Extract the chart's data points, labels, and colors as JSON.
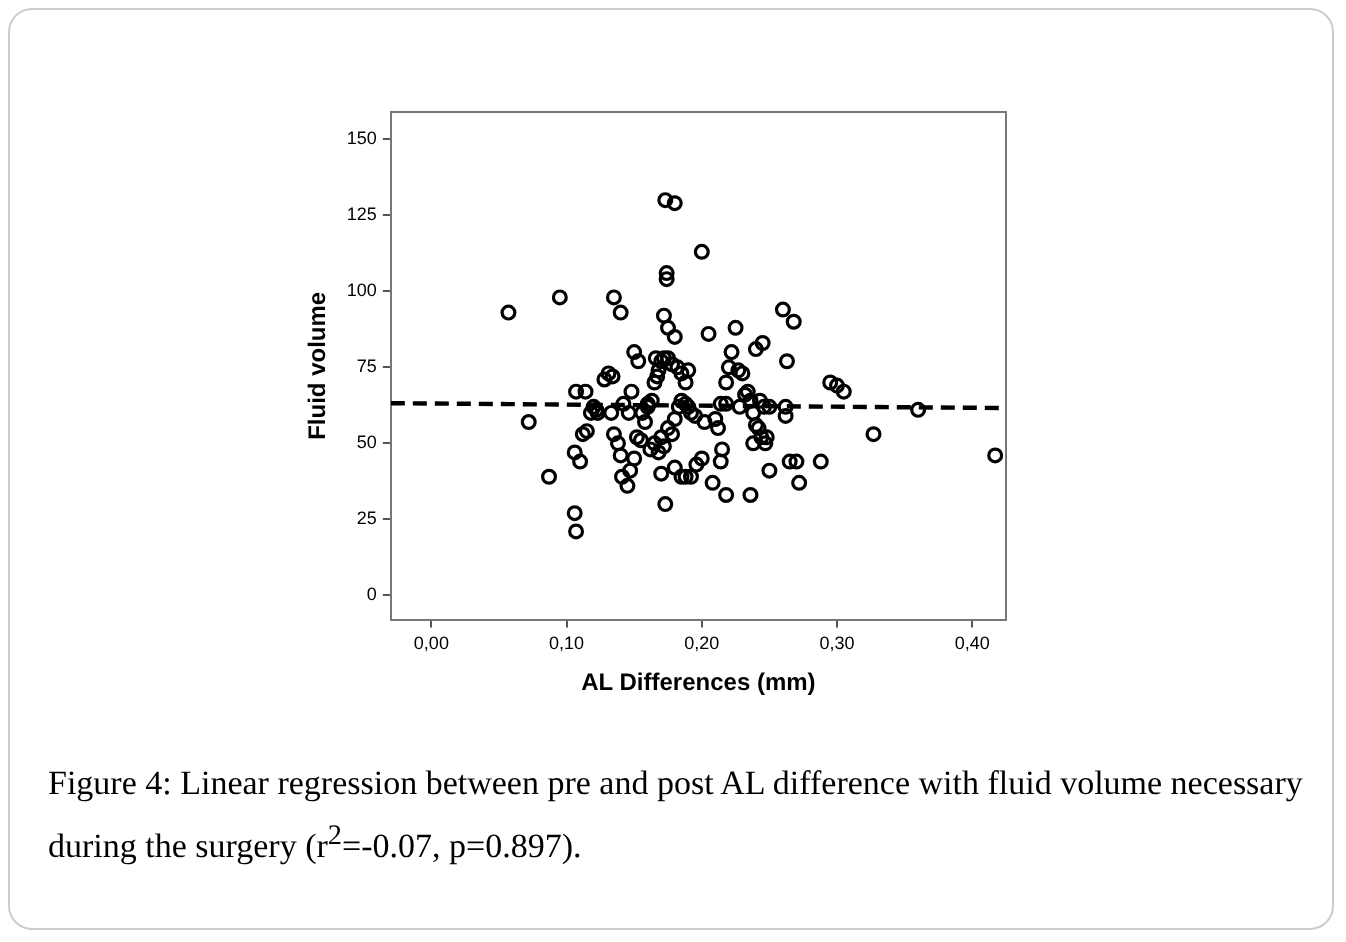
{
  "chart_data": {
    "type": "scatter",
    "xlabel": "AL Differences (mm)",
    "ylabel": "Fluid volume",
    "annotations": [
      "Figure 4: Linear regression between pre and post AL difference with fluid volume necessary during the surgery (r$^{2}$=-0.07, p=0.897)."
    ],
    "xlim": [
      -0.03,
      0.425
    ],
    "ylim": [
      -8,
      159
    ],
    "xticks": [
      {
        "value": 0,
        "label": "0,00"
      },
      {
        "value": 0.1,
        "label": "0,10"
      },
      {
        "value": 0.2,
        "label": "0,20"
      },
      {
        "value": 0.3,
        "label": "0,30"
      },
      {
        "value": 0.4,
        "label": "0,40"
      }
    ],
    "yticks": [
      0,
      25,
      50,
      75,
      100,
      125,
      150
    ],
    "grid": false,
    "legend": false,
    "marker": "circle",
    "series": [
      {
        "color": "#000000",
        "x": [
          0.057,
          0.095,
          0.072,
          0.087,
          0.106,
          0.107,
          0.106,
          0.11,
          0.107,
          0.114,
          0.112,
          0.115,
          0.118,
          0.12,
          0.122,
          0.123,
          0.128,
          0.131,
          0.134,
          0.135,
          0.14,
          0.15,
          0.153,
          0.148,
          0.135,
          0.138,
          0.14,
          0.141,
          0.145,
          0.147,
          0.15,
          0.133,
          0.142,
          0.146,
          0.152,
          0.155,
          0.158,
          0.16,
          0.163,
          0.165,
          0.167,
          0.168,
          0.17,
          0.172,
          0.175,
          0.174,
          0.174,
          0.173,
          0.18,
          0.172,
          0.175,
          0.18,
          0.2,
          0.178,
          0.182,
          0.185,
          0.188,
          0.19,
          0.162,
          0.165,
          0.168,
          0.17,
          0.172,
          0.175,
          0.178,
          0.18,
          0.183,
          0.185,
          0.188,
          0.19,
          0.192,
          0.195,
          0.17,
          0.173,
          0.18,
          0.185,
          0.188,
          0.192,
          0.196,
          0.2,
          0.202,
          0.205,
          0.21,
          0.212,
          0.215,
          0.218,
          0.22,
          0.222,
          0.225,
          0.227,
          0.23,
          0.232,
          0.234,
          0.236,
          0.238,
          0.24,
          0.242,
          0.244,
          0.238,
          0.228,
          0.214,
          0.218,
          0.208,
          0.214,
          0.218,
          0.236,
          0.24,
          0.245,
          0.243,
          0.246,
          0.25,
          0.248,
          0.247,
          0.25,
          0.26,
          0.268,
          0.263,
          0.262,
          0.265,
          0.27,
          0.272,
          0.288,
          0.295,
          0.3,
          0.305,
          0.327,
          0.36,
          0.417,
          0.262,
          0.166,
          0.16,
          0.156
        ],
        "values": [
          93,
          98,
          57,
          39,
          27,
          21,
          47,
          44,
          67,
          67,
          53,
          54,
          60,
          62,
          61,
          60,
          71,
          73,
          72,
          98,
          93,
          80,
          77,
          67,
          53,
          50,
          46,
          39,
          36,
          41,
          45,
          60,
          63,
          60,
          52,
          51,
          57,
          62,
          64,
          70,
          72,
          74,
          77,
          78,
          78,
          106,
          104,
          130,
          129,
          92,
          88,
          85,
          113,
          76,
          75,
          73,
          70,
          74,
          48,
          50,
          47,
          52,
          49,
          55,
          53,
          58,
          62,
          64,
          63,
          62,
          60,
          59,
          40,
          30,
          42,
          39,
          39,
          39,
          43,
          45,
          57,
          86,
          58,
          55,
          48,
          70,
          75,
          80,
          88,
          74,
          73,
          66,
          67,
          64,
          60,
          56,
          55,
          52,
          50,
          62,
          63,
          63,
          37,
          44,
          33,
          33,
          81,
          83,
          64,
          62,
          62,
          52,
          50,
          41,
          94,
          90,
          77,
          59,
          44,
          44,
          37,
          44,
          70,
          69,
          67,
          53,
          61,
          46,
          62,
          78,
          63,
          60
        ]
      },
      {
        "type": "line",
        "line_style": "dashed",
        "marker": "none",
        "color": "#000000",
        "x": [
          -0.03,
          0.425
        ],
        "values": [
          63.2,
          61.6
        ]
      }
    ]
  }
}
